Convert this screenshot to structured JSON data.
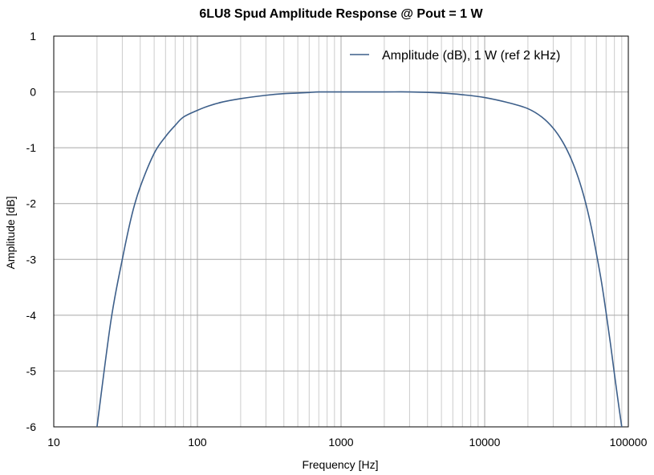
{
  "chart_data": {
    "type": "line",
    "title": "6LU8 Spud Amplitude Response @ Pout = 1 W",
    "xlabel": "Frequency [Hz]",
    "ylabel": "Amplitude [dB]",
    "x_scale": "log",
    "xlim": [
      10,
      100000
    ],
    "ylim": [
      -6,
      1
    ],
    "x_ticks": [
      {
        "value": 10,
        "label": "10"
      },
      {
        "value": 100,
        "label": "100"
      },
      {
        "value": 1000,
        "label": "1000"
      },
      {
        "value": 10000,
        "label": "10000"
      },
      {
        "value": 100000,
        "label": "100000"
      }
    ],
    "y_ticks": [
      {
        "value": 1,
        "label": "1"
      },
      {
        "value": 0,
        "label": "0"
      },
      {
        "value": -1,
        "label": "-1"
      },
      {
        "value": -2,
        "label": "-2"
      },
      {
        "value": -3,
        "label": "-3"
      },
      {
        "value": -4,
        "label": "-4"
      },
      {
        "value": -5,
        "label": "-5"
      },
      {
        "value": -6,
        "label": "-6"
      }
    ],
    "grid": true,
    "legend_position": "top-right",
    "series": [
      {
        "name": "Amplitude (dB), 1 W (ref 2 kHz)",
        "color": "#3d5f8a",
        "x": [
          20,
          25,
          30,
          35,
          40,
          50,
          60,
          70,
          80,
          100,
          120,
          150,
          200,
          300,
          400,
          500,
          600,
          700,
          1000,
          2000,
          3000,
          5000,
          7000,
          10000,
          15000,
          20000,
          25000,
          30000,
          35000,
          40000,
          45000,
          50000,
          55000,
          60000,
          65000,
          70000,
          75000,
          80000,
          85000,
          90000
        ],
        "y": [
          -6.0,
          -4.1,
          -3.0,
          -2.2,
          -1.7,
          -1.1,
          -0.8,
          -0.6,
          -0.45,
          -0.33,
          -0.25,
          -0.18,
          -0.12,
          -0.06,
          -0.03,
          -0.02,
          -0.01,
          0.0,
          0.0,
          0.0,
          0.0,
          -0.02,
          -0.05,
          -0.1,
          -0.2,
          -0.3,
          -0.45,
          -0.65,
          -0.9,
          -1.2,
          -1.55,
          -1.95,
          -2.4,
          -2.9,
          -3.4,
          -3.95,
          -4.5,
          -5.05,
          -5.55,
          -6.0
        ]
      }
    ]
  }
}
